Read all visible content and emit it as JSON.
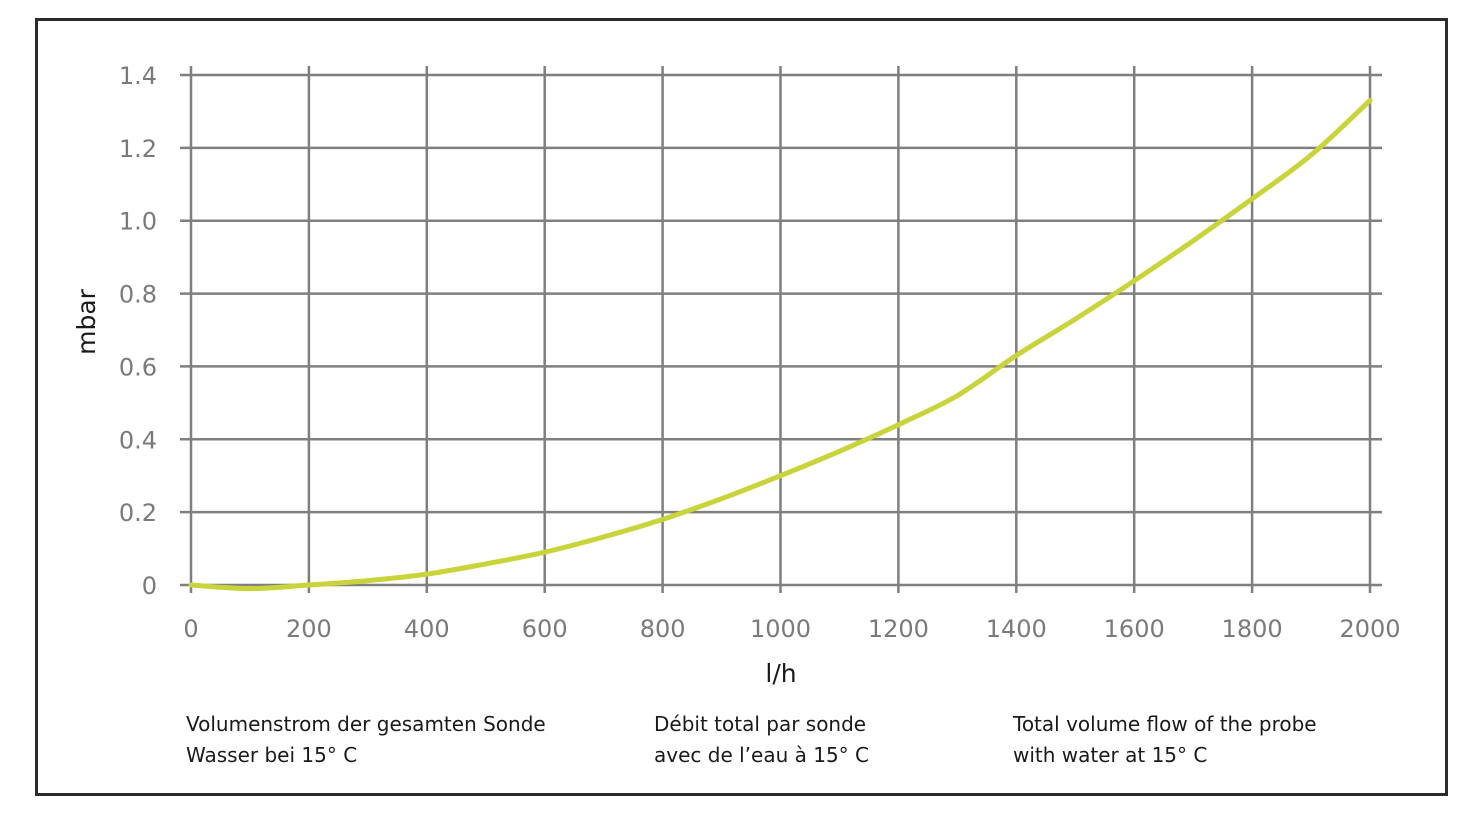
{
  "chart_data": {
    "type": "line",
    "xlabel": "l/h",
    "ylabel": "mbar",
    "xlim": [
      0,
      2000
    ],
    "ylim": [
      0,
      1.4
    ],
    "x_ticks": [
      "0",
      "200",
      "400",
      "600",
      "800",
      "1000",
      "1200",
      "1400",
      "1600",
      "1800",
      "2000"
    ],
    "y_ticks": [
      "0",
      "0.2",
      "0.4",
      "0.6",
      "0.8",
      "1.0",
      "1.2",
      "1.4"
    ],
    "grid": true,
    "series": [
      {
        "color": "#c8d43a",
        "x": [
          0,
          100,
          200,
          300,
          400,
          500,
          600,
          700,
          800,
          900,
          1000,
          1100,
          1200,
          1300,
          1400,
          1500,
          1600,
          1700,
          1800,
          1900,
          2000
        ],
        "y": [
          0.0,
          -0.01,
          0.0,
          0.012,
          0.03,
          0.058,
          0.09,
          0.132,
          0.18,
          0.237,
          0.3,
          0.367,
          0.44,
          0.52,
          0.63,
          0.73,
          0.835,
          0.945,
          1.06,
          1.18,
          1.33
        ]
      }
    ]
  },
  "captions": {
    "de_line1": "Volumenstrom der gesamten Sonde",
    "de_line2": "Wasser bei 15° C",
    "fr_line1": "Débit total par sonde",
    "fr_line2": "avec de l’eau à 15° C",
    "en_line1": "Total volume flow of the probe",
    "en_line2": "with water at 15° C"
  },
  "colors": {
    "grid": "#7f7f7f",
    "line": "#c8d43a",
    "frame": "#2b2b2b"
  }
}
